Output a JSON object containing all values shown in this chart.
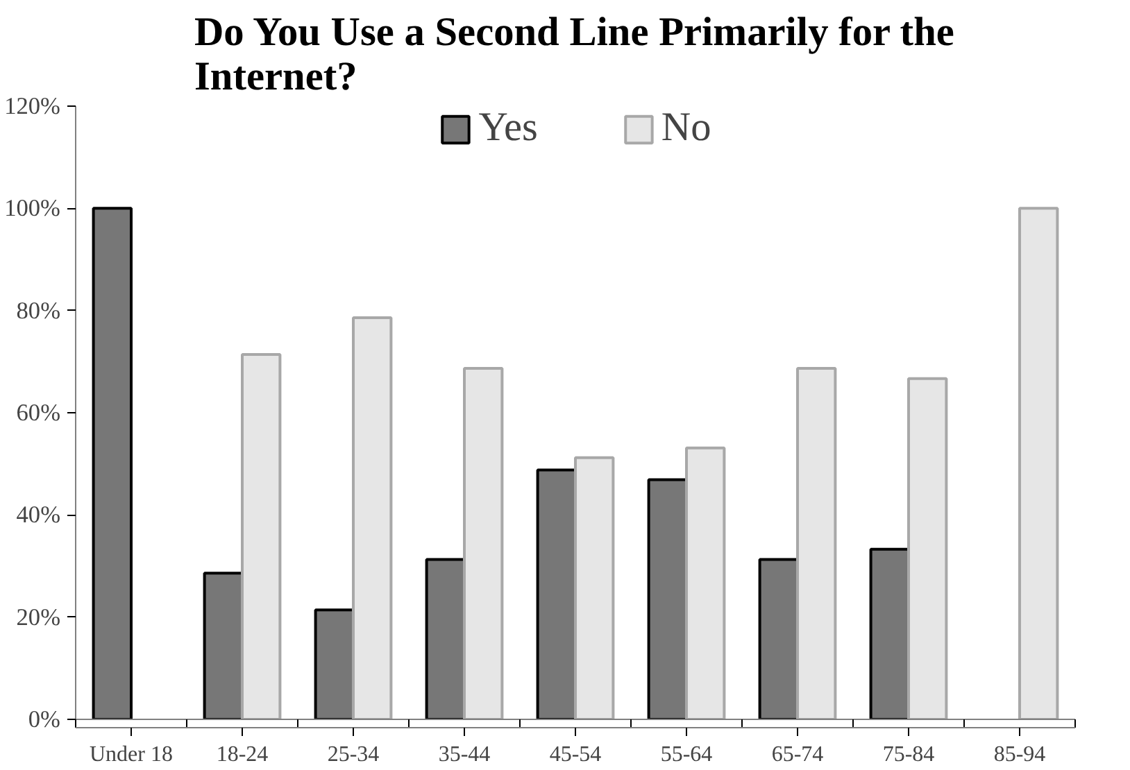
{
  "chart_data": {
    "type": "bar",
    "title": "Do You Use a Second Line Primarily for the Internet?",
    "categories": [
      "Under 18",
      "18-24",
      "25-34",
      "35-44",
      "45-54",
      "55-64",
      "65-74",
      "75-84",
      "85-94"
    ],
    "series": [
      {
        "name": "Yes",
        "color": "#777777",
        "values": [
          100,
          28.6,
          21.4,
          31.3,
          48.8,
          46.9,
          31.3,
          33.3,
          null
        ]
      },
      {
        "name": "No",
        "color": "#e6e6e6",
        "values": [
          null,
          71.4,
          78.6,
          68.7,
          51.2,
          53.1,
          68.7,
          66.7,
          100
        ]
      }
    ],
    "ylim": [
      0,
      120
    ],
    "yticks": [
      {
        "value": 0,
        "label": "0%"
      },
      {
        "value": 20,
        "label": "20%"
      },
      {
        "value": 40,
        "label": "40%"
      },
      {
        "value": 60,
        "label": "60%"
      },
      {
        "value": 80,
        "label": "80%"
      },
      {
        "value": 100,
        "label": "100%"
      },
      {
        "value": 120,
        "label": "120%"
      }
    ],
    "grid": false,
    "legend": "top"
  }
}
